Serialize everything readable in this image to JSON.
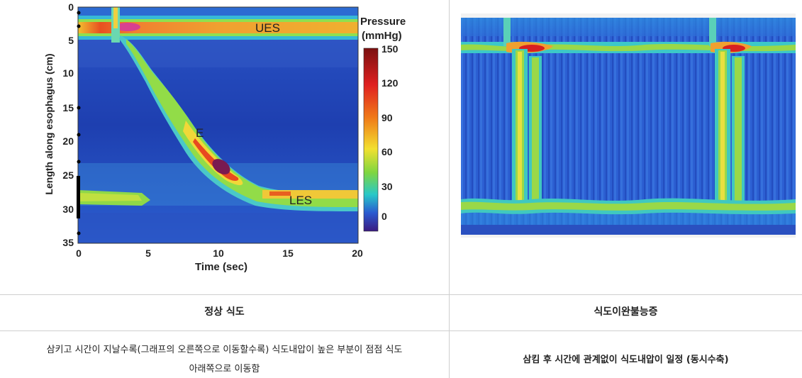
{
  "left_figure": {
    "ylabel": "Length along esophagus (cm)",
    "xlabel": "Time (sec)",
    "y_ticks": [
      "0",
      "5",
      "10",
      "15",
      "20",
      "25",
      "30",
      "35"
    ],
    "x_ticks": [
      "0",
      "5",
      "10",
      "15",
      "20"
    ],
    "labels": {
      "ues": "UES",
      "e": "E",
      "les": "LES"
    },
    "colorbar": {
      "title_line1": "Pressure",
      "title_line2": "(mmHg)",
      "ticks": [
        "150",
        "120",
        "90",
        "60",
        "30",
        "0"
      ]
    }
  },
  "headers": {
    "left": "정상 식도",
    "right": "식도이완불능증"
  },
  "descriptions": {
    "left_line1": "삼키고 시간이 지날수록(그래프의 오른쪽으로 이동할수록) 식도내압이 높은 부분이 점점 식도",
    "left_line2": "아래쪽으로 이동함",
    "right": "삼킴 후 시간에 관계없이 식도내압이 일정 (동시수축)"
  }
}
